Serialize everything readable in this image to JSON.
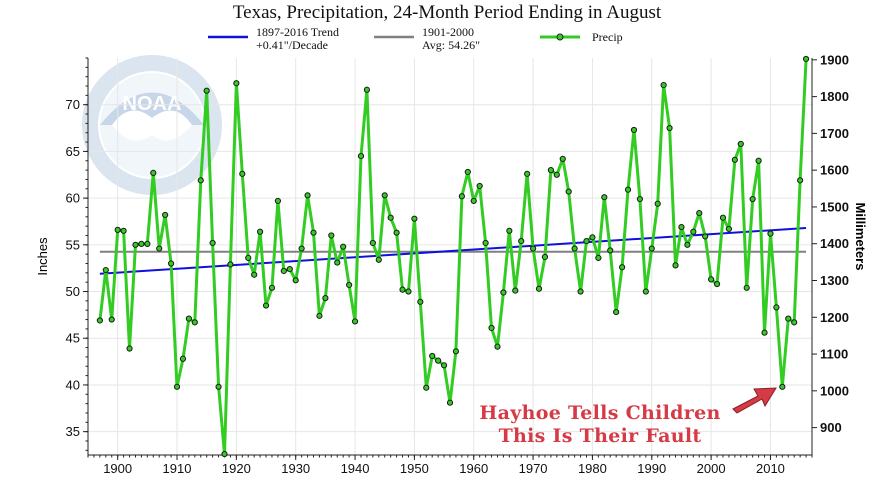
{
  "chart_data": {
    "type": "line",
    "title": "Texas, Precipitation, 24-Month Period Ending in August",
    "ylabel": "Inches",
    "y2label": "Millimeters",
    "xlim": [
      1895,
      2017
    ],
    "ylim": [
      32.5,
      75
    ],
    "x_ticks": [
      "1900",
      "1910",
      "1920",
      "1930",
      "1940",
      "1950",
      "1960",
      "1970",
      "1980",
      "1990",
      "2000",
      "2010"
    ],
    "y_ticks": [
      "35",
      "40",
      "45",
      "50",
      "55",
      "60",
      "65",
      "70"
    ],
    "y2_ticks": [
      "900",
      "1000",
      "1100",
      "1200",
      "1300",
      "1400",
      "1500",
      "1600",
      "1700",
      "1800",
      "1900"
    ],
    "grid": true,
    "legend_placement": "top",
    "legend": {
      "trend_line1": "1897-2016 Trend",
      "trend_line2": "+0.41\"/Decade",
      "avg_line1": "1901-2000",
      "avg_line2": "Avg: 54.26\"",
      "precip": "Precip"
    },
    "trend": {
      "name": "1897-2016 Trend",
      "x": [
        1897,
        2016
      ],
      "y": [
        51.9,
        56.8
      ],
      "color": "#1010dd"
    },
    "average": {
      "name": "1901-2000",
      "value": 54.26,
      "color": "#808080"
    },
    "series": [
      {
        "name": "Precip",
        "color": "#33cc22",
        "x": [
          1897,
          1898,
          1899,
          1900,
          1901,
          1902,
          1903,
          1904,
          1905,
          1906,
          1907,
          1908,
          1909,
          1910,
          1911,
          1912,
          1913,
          1914,
          1915,
          1916,
          1917,
          1918,
          1919,
          1920,
          1921,
          1922,
          1923,
          1924,
          1925,
          1926,
          1927,
          1928,
          1929,
          1930,
          1931,
          1932,
          1933,
          1934,
          1935,
          1936,
          1937,
          1938,
          1939,
          1940,
          1941,
          1942,
          1943,
          1944,
          1945,
          1946,
          1947,
          1948,
          1949,
          1950,
          1951,
          1952,
          1953,
          1954,
          1955,
          1956,
          1957,
          1958,
          1959,
          1960,
          1961,
          1962,
          1963,
          1964,
          1965,
          1966,
          1967,
          1968,
          1969,
          1970,
          1971,
          1972,
          1973,
          1974,
          1975,
          1976,
          1977,
          1978,
          1979,
          1980,
          1981,
          1982,
          1983,
          1984,
          1985,
          1986,
          1987,
          1988,
          1989,
          1990,
          1991,
          1992,
          1993,
          1994,
          1995,
          1996,
          1997,
          1998,
          1999,
          2000,
          2001,
          2002,
          2003,
          2004,
          2005,
          2006,
          2007,
          2008,
          2009,
          2010,
          2011,
          2012,
          2013,
          2014,
          2015,
          2016
        ],
        "values": [
          46.9,
          52.3,
          47.0,
          56.6,
          56.5,
          43.9,
          55.0,
          55.1,
          55.1,
          62.7,
          54.6,
          58.2,
          53.0,
          39.8,
          42.8,
          47.1,
          46.7,
          61.9,
          71.5,
          55.2,
          39.8,
          32.6,
          52.9,
          72.3,
          62.6,
          53.6,
          51.8,
          56.4,
          48.5,
          50.4,
          59.7,
          52.2,
          52.4,
          51.2,
          54.6,
          60.3,
          56.3,
          47.4,
          49.3,
          56.0,
          53.1,
          54.8,
          50.7,
          46.8,
          64.5,
          71.6,
          55.2,
          53.4,
          60.3,
          57.9,
          56.3,
          50.2,
          50.0,
          57.8,
          48.9,
          39.7,
          43.1,
          42.6,
          42.1,
          38.1,
          43.6,
          60.2,
          62.8,
          59.7,
          61.3,
          55.2,
          46.1,
          44.1,
          49.9,
          56.5,
          50.1,
          55.4,
          62.6,
          54.6,
          50.3,
          53.7,
          63.0,
          62.5,
          64.2,
          60.7,
          54.6,
          50.0,
          55.4,
          55.8,
          53.6,
          60.1,
          54.4,
          47.8,
          52.6,
          60.9,
          67.3,
          59.9,
          50.0,
          54.6,
          59.4,
          72.1,
          67.5,
          52.8,
          56.9,
          55.0,
          56.4,
          58.4,
          55.9,
          51.3,
          50.8,
          57.9,
          56.7,
          64.1,
          65.8,
          50.4,
          59.9,
          64.0,
          45.6,
          56.2,
          48.3,
          39.8,
          47.1,
          46.7,
          61.9,
          74.9
        ]
      }
    ],
    "annotation": {
      "line1": "Hayhoe Tells Children",
      "line2": "This Is Their Fault",
      "color": "#d53a45"
    },
    "watermark": {
      "logo_text": "NOAA",
      "ring_text": "NATIONAL OCEANIC AND ATMOSPHERIC ADMINISTRATION · U.S. DEPARTMENT OF COMMERCE"
    }
  }
}
